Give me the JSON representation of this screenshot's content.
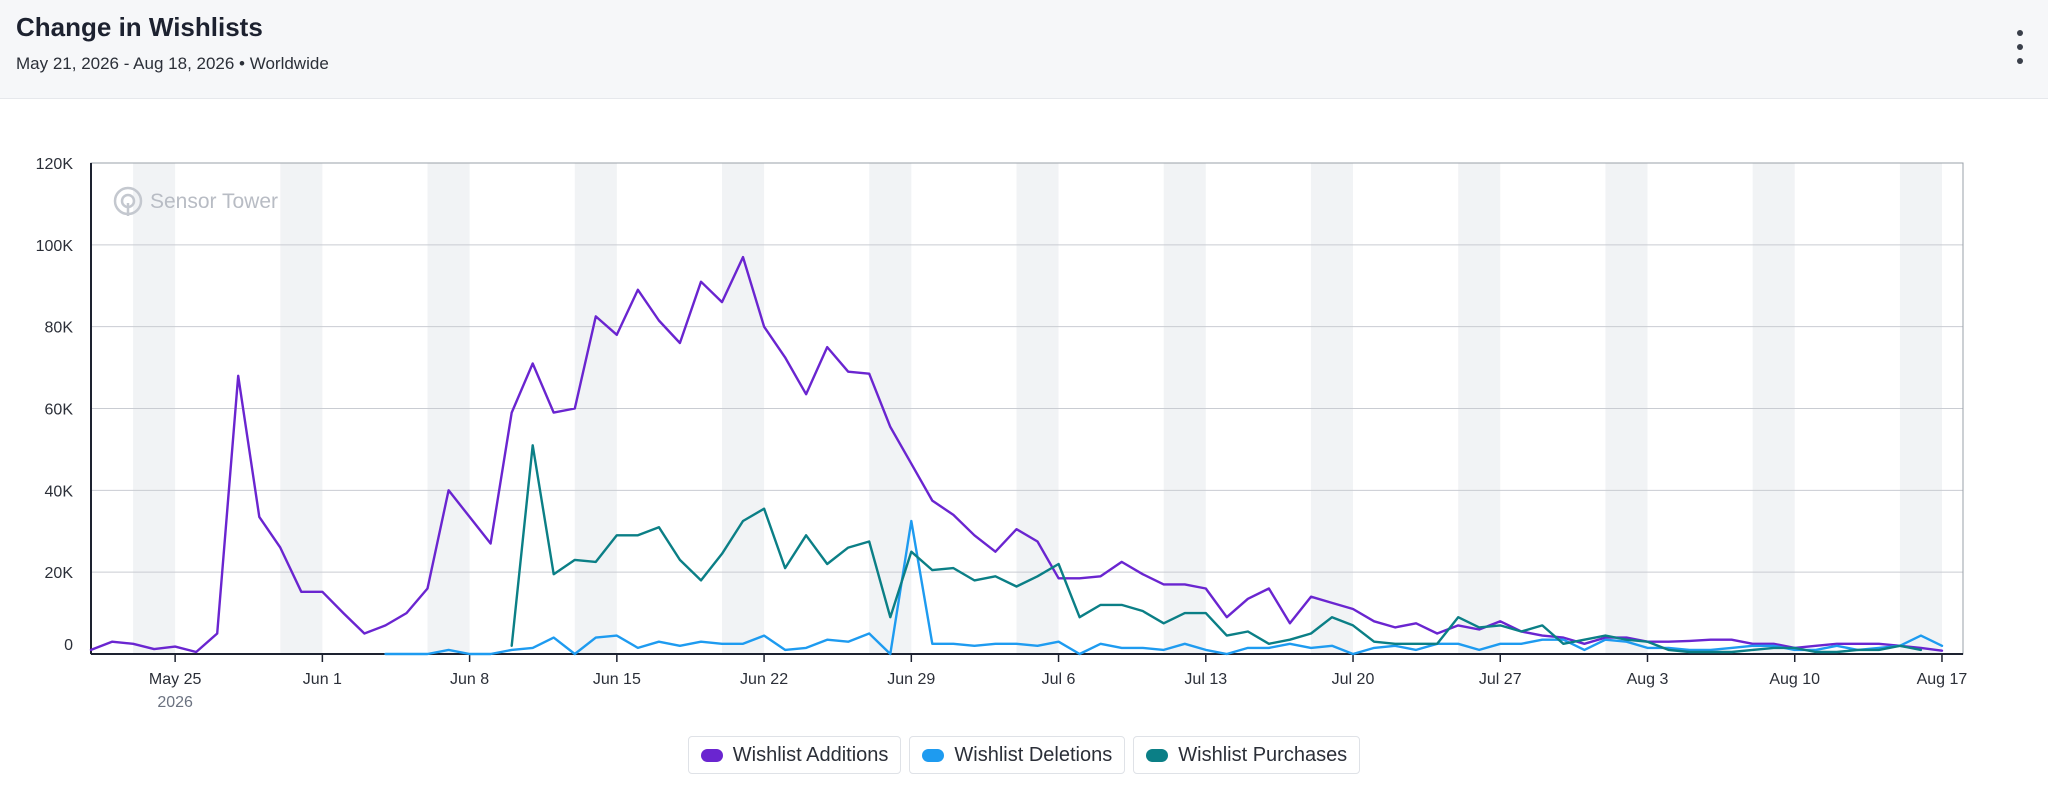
{
  "header": {
    "title": "Change in Wishlists",
    "subtitle": "May 21, 2026 - Aug 18, 2026 • Worldwide"
  },
  "watermark": {
    "text": "Sensor Tower",
    "icon": "sensor-tower-logo-icon"
  },
  "chart_data": {
    "type": "line",
    "title": "Change in Wishlists",
    "x_range": [
      "2026-05-21",
      "2026-08-18"
    ],
    "ylim": [
      0,
      120000
    ],
    "y_ticks": [
      {
        "value": 0,
        "label": "0"
      },
      {
        "value": 20000,
        "label": "20K"
      },
      {
        "value": 40000,
        "label": "40K"
      },
      {
        "value": 60000,
        "label": "60K"
      },
      {
        "value": 80000,
        "label": "80K"
      },
      {
        "value": 100000,
        "label": "100K"
      },
      {
        "value": 120000,
        "label": "120K"
      }
    ],
    "x_ticks": [
      {
        "date": "2026-05-25",
        "label": "May 25",
        "sublabel": "2026"
      },
      {
        "date": "2026-06-01",
        "label": "Jun 1"
      },
      {
        "date": "2026-06-08",
        "label": "Jun 8"
      },
      {
        "date": "2026-06-15",
        "label": "Jun 15"
      },
      {
        "date": "2026-06-22",
        "label": "Jun 22"
      },
      {
        "date": "2026-06-29",
        "label": "Jun 29"
      },
      {
        "date": "2026-07-06",
        "label": "Jul 6"
      },
      {
        "date": "2026-07-13",
        "label": "Jul 13"
      },
      {
        "date": "2026-07-20",
        "label": "Jul 20"
      },
      {
        "date": "2026-07-27",
        "label": "Jul 27"
      },
      {
        "date": "2026-08-03",
        "label": "Aug 3"
      },
      {
        "date": "2026-08-10",
        "label": "Aug 10"
      },
      {
        "date": "2026-08-17",
        "label": "Aug 17"
      }
    ],
    "weekend_bands": true,
    "grid": true,
    "legend_position": "bottom",
    "series": [
      {
        "name": "Wishlist Additions",
        "color": "#6a25d0",
        "start_date": "2026-05-21",
        "values": [
          1000,
          3000,
          2500,
          1200,
          1800,
          500,
          5000,
          68000,
          33500,
          26000,
          15200,
          15200,
          10000,
          5000,
          7000,
          10000,
          16000,
          40000,
          33500,
          27000,
          59000,
          71000,
          59000,
          60000,
          82500,
          78000,
          89000,
          81500,
          76000,
          91000,
          86000,
          97000,
          80000,
          72500,
          63500,
          75000,
          69000,
          68500,
          55500,
          46500,
          37500,
          34000,
          29000,
          25000,
          30500,
          27500,
          18500,
          18500,
          19000,
          22500,
          19500,
          17000,
          17000,
          16000,
          9000,
          13500,
          16000,
          7500,
          14000,
          12500,
          11000,
          8000,
          6500,
          7500,
          5000,
          7000,
          6000,
          8000,
          5500,
          4500,
          4000,
          2500,
          4000,
          4000,
          3000,
          3000,
          3200,
          3500,
          3500,
          2500,
          2500,
          1500,
          2000,
          2500,
          2500,
          2500,
          2000,
          1500,
          800
        ]
      },
      {
        "name": "Wishlist Deletions",
        "color": "#1e9bf0",
        "start_date": "2026-06-04",
        "values": [
          0,
          0,
          0,
          1000,
          0,
          0,
          1000,
          1500,
          4000,
          0,
          4000,
          4500,
          1500,
          3000,
          2000,
          3000,
          2500,
          2500,
          4500,
          1000,
          1500,
          3500,
          3000,
          5000,
          0,
          32500,
          2500,
          2500,
          2000,
          2500,
          2500,
          2000,
          3000,
          0,
          2500,
          1500,
          1500,
          1000,
          2500,
          1000,
          0,
          1500,
          1500,
          2500,
          1500,
          2000,
          0,
          1500,
          2000,
          1000,
          2500,
          2500,
          1000,
          2500,
          2500,
          3500,
          3500,
          1000,
          3500,
          3000,
          1500,
          1500,
          1000,
          1000,
          1500,
          2000,
          2000,
          1000,
          1000,
          2000,
          1000,
          1500,
          2000,
          4500,
          2000
        ]
      },
      {
        "name": "Wishlist Purchases",
        "color": "#0b7f86",
        "start_date": "2026-06-10",
        "values": [
          2000,
          51000,
          19500,
          23000,
          22500,
          29000,
          29000,
          31000,
          23000,
          18000,
          24500,
          32500,
          35500,
          21000,
          29000,
          22000,
          26000,
          27500,
          9000,
          25000,
          20500,
          21000,
          18000,
          19000,
          16500,
          19000,
          22000,
          9000,
          12000,
          12000,
          10500,
          7500,
          10000,
          10000,
          4500,
          5500,
          2500,
          3500,
          5000,
          9000,
          7000,
          3000,
          2500,
          2500,
          2500,
          9000,
          6500,
          7000,
          5500,
          7000,
          2500,
          3500,
          4500,
          3500,
          3000,
          1000,
          500,
          500,
          500,
          1000,
          1500,
          1500,
          500,
          500,
          1000,
          1000,
          2000,
          1000
        ]
      }
    ]
  },
  "legend": {
    "items": [
      {
        "label": "Wishlist Additions",
        "color": "#6a25d0"
      },
      {
        "label": "Wishlist Deletions",
        "color": "#1e9bf0"
      },
      {
        "label": "Wishlist Purchases",
        "color": "#0b7f86"
      }
    ]
  }
}
